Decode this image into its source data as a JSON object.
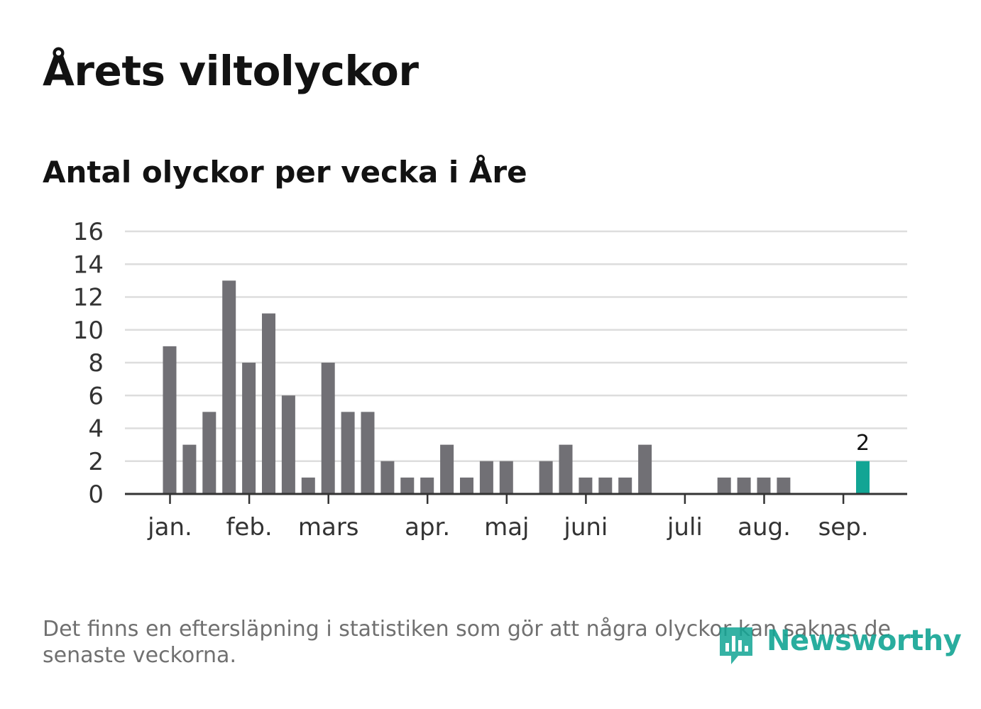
{
  "title": "Årets viltolyckor",
  "subtitle": "Antal olyckor per vecka i Åre",
  "footnote": "Det finns en eftersläpning i statistiken som gör att några olyckor kan saknas de senaste veckorna.",
  "brand": {
    "name": "Newsworthy",
    "icon": "newsworthy-logo-icon"
  },
  "colors": {
    "bar": "#717075",
    "highlight": "#12a594",
    "grid": "#dddddd",
    "axis": "#333333"
  },
  "chart_data": {
    "type": "bar",
    "title": "",
    "xlabel": "",
    "ylabel": "",
    "ylim": [
      0,
      16
    ],
    "yticks": [
      0,
      2,
      4,
      6,
      8,
      10,
      12,
      14,
      16
    ],
    "grid": true,
    "series": [
      {
        "values": [
          9,
          3,
          5,
          13,
          8,
          11,
          6,
          1,
          8,
          5,
          5,
          2,
          1,
          1,
          3,
          1,
          2,
          2,
          0,
          2,
          3,
          1,
          1,
          1,
          3,
          0,
          0,
          0,
          1,
          1,
          1,
          1,
          0,
          0,
          0,
          2
        ]
      }
    ],
    "month_labels": [
      {
        "label": "jan.",
        "week": 1
      },
      {
        "label": "feb.",
        "week": 5
      },
      {
        "label": "mars",
        "week": 9
      },
      {
        "label": "apr.",
        "week": 14
      },
      {
        "label": "maj",
        "week": 18
      },
      {
        "label": "juni",
        "week": 22
      },
      {
        "label": "juli",
        "week": 27
      },
      {
        "label": "aug.",
        "week": 31
      },
      {
        "label": "sep.",
        "week": 35
      }
    ],
    "highlight": {
      "index": 35,
      "label": "2"
    }
  }
}
